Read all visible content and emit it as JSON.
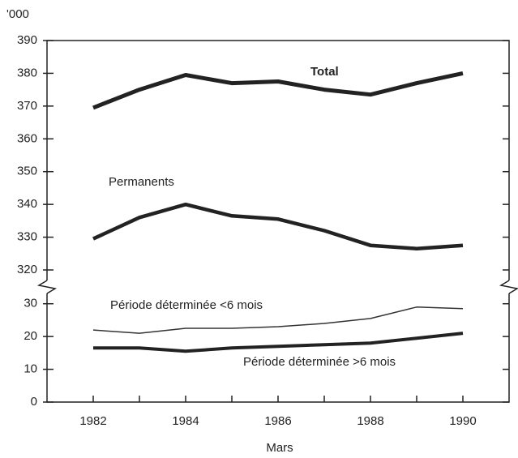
{
  "chart_data": {
    "type": "line",
    "y_axis_label": "'000",
    "x_axis_label": "Mars",
    "x": [
      1982,
      1983,
      1984,
      1985,
      1986,
      1987,
      1988,
      1989,
      1990
    ],
    "series": [
      {
        "name": "Total",
        "color": "#222222",
        "line_width": 5,
        "values": [
          369.5,
          375,
          379.5,
          377,
          377.5,
          375,
          373.5,
          377,
          380
        ]
      },
      {
        "name": "Permanents",
        "color": "#222222",
        "line_width": 4.5,
        "values": [
          329.5,
          336,
          340,
          336.5,
          335.5,
          332,
          327.5,
          326.5,
          327.5
        ]
      },
      {
        "name": "Période déterminée <6 mois",
        "color": "#333333",
        "line_width": 1.5,
        "values": [
          22,
          21,
          22.5,
          22.5,
          23,
          24,
          25.5,
          29,
          28.5
        ]
      },
      {
        "name": "Période déterminée >6 mois",
        "color": "#222222",
        "line_width": 4,
        "values": [
          16.5,
          16.5,
          15.5,
          16.5,
          17,
          17.5,
          18,
          19.5,
          21
        ]
      }
    ],
    "xlim": [
      1981,
      1991
    ],
    "xticks": [
      1982,
      1984,
      1986,
      1988,
      1990
    ],
    "x_minor_ticks": [
      1983,
      1985,
      1987,
      1989
    ],
    "ylim": [
      0,
      390
    ],
    "y_break": [
      30,
      320
    ],
    "yticks": [
      0,
      10,
      20,
      30,
      320,
      330,
      340,
      350,
      360,
      370,
      380,
      390
    ]
  }
}
